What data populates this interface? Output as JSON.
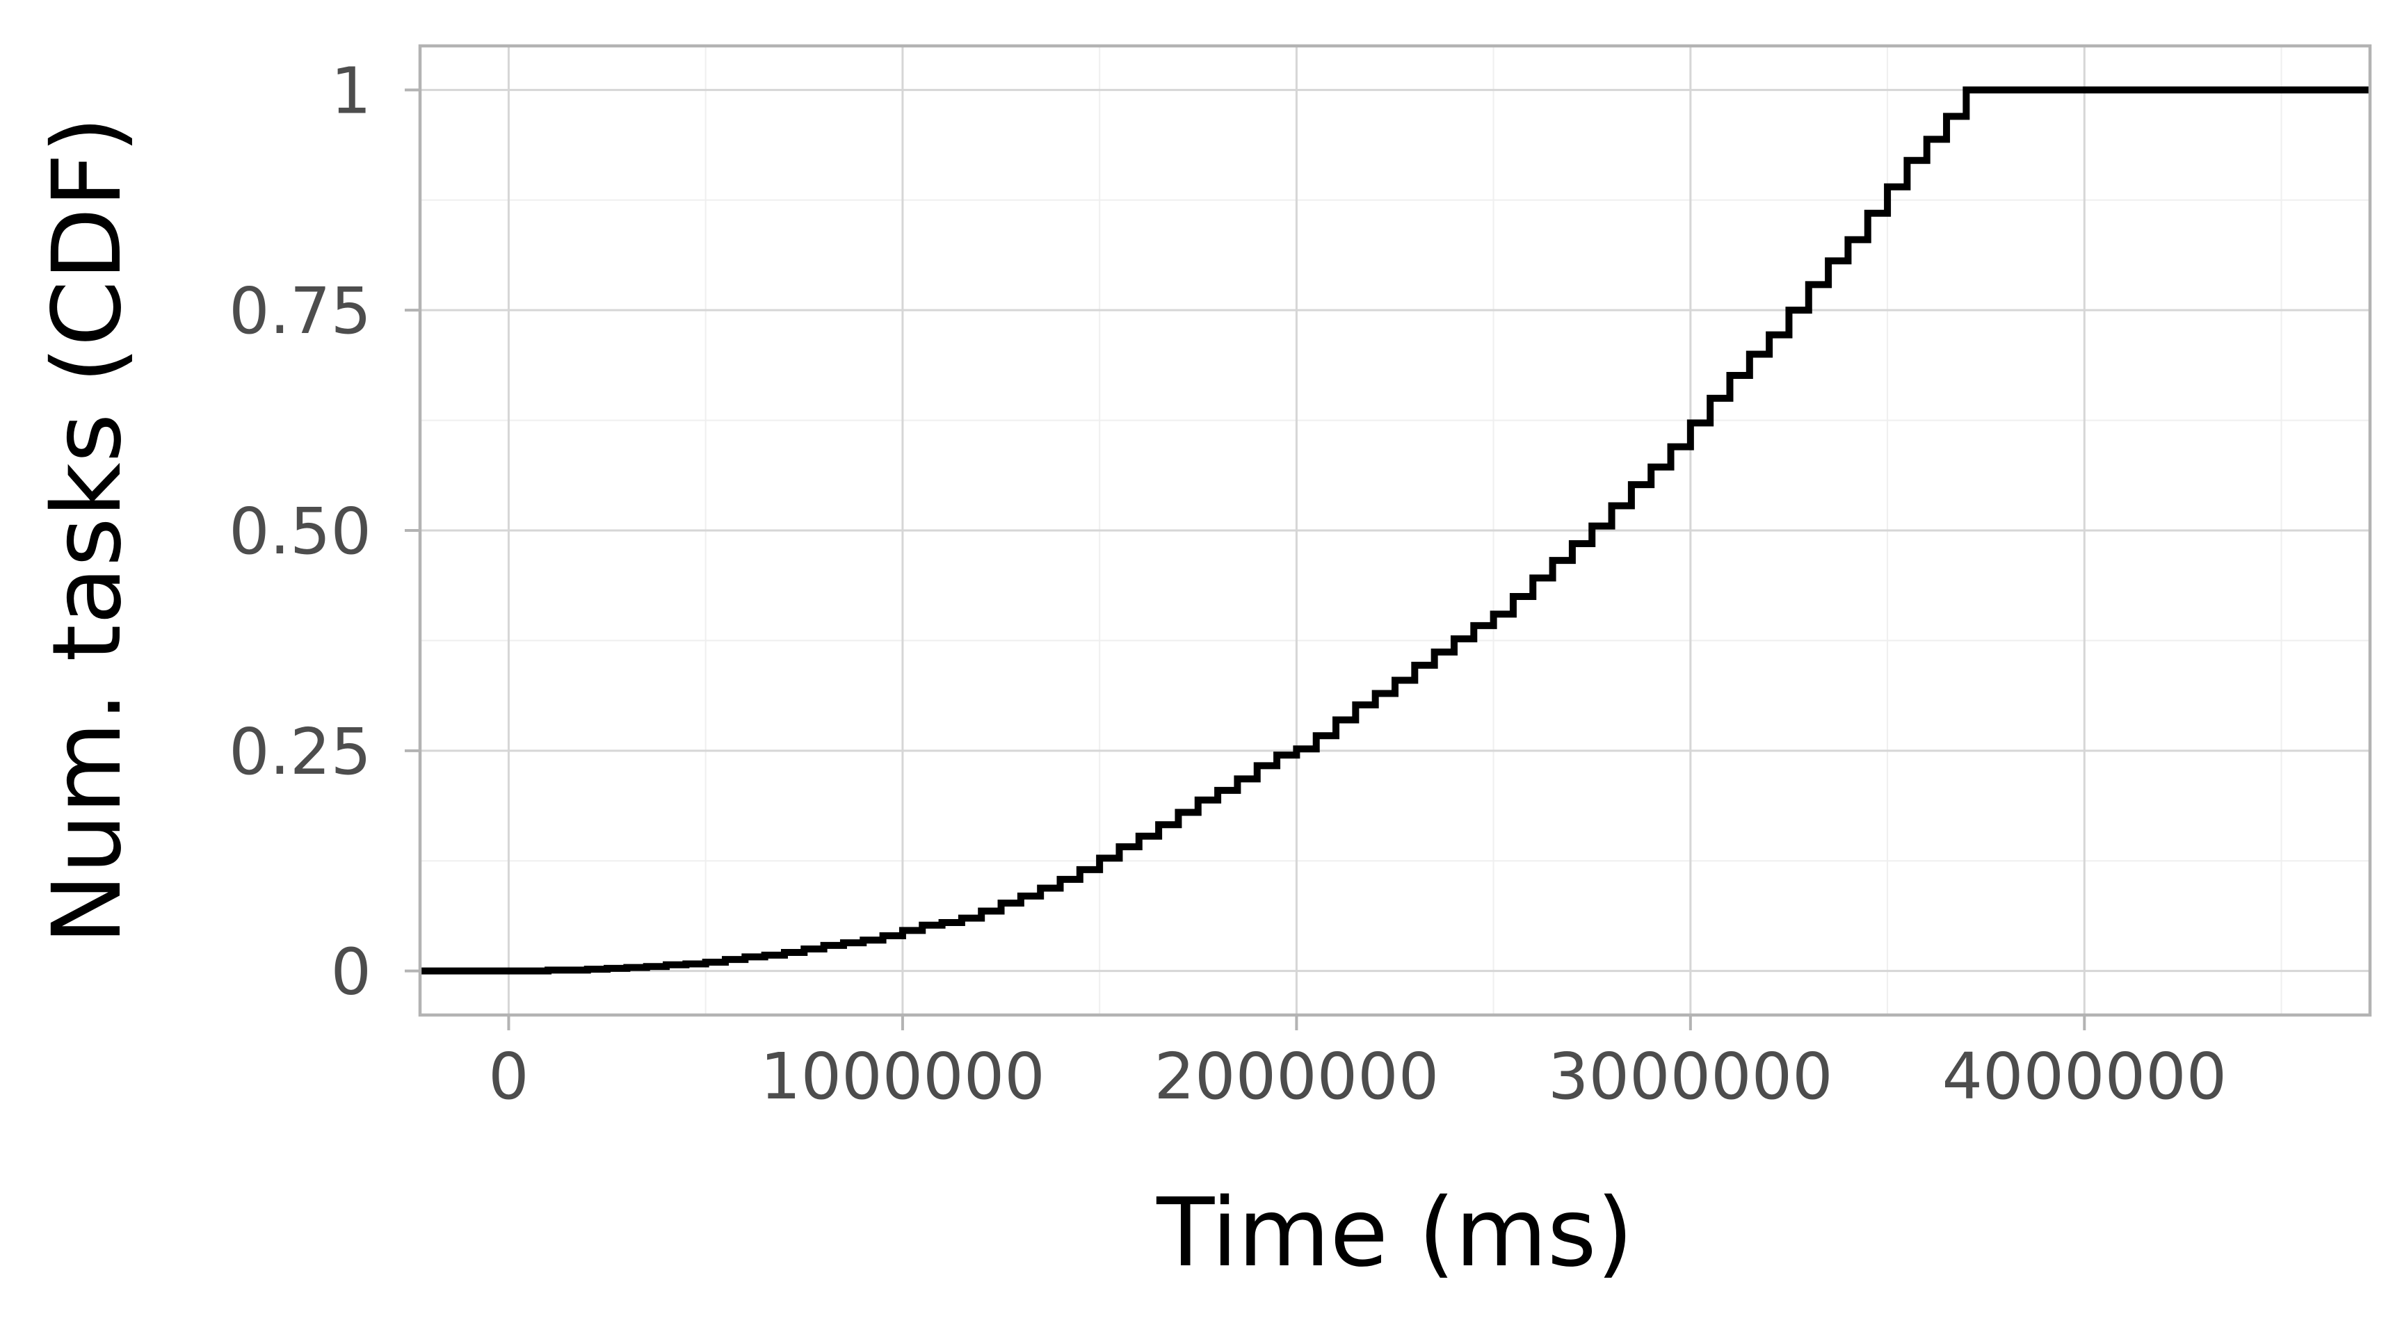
{
  "chart_data": {
    "type": "line",
    "title": "",
    "xlabel": "Time (ms)",
    "ylabel": "Num. tasks (CDF)",
    "xlim": [
      -225000,
      4725000
    ],
    "ylim": [
      -0.05,
      1.05
    ],
    "x_ticks": [
      0,
      1000000,
      2000000,
      3000000,
      4000000
    ],
    "x_tick_labels": [
      "0",
      "1000000",
      "2000000",
      "3000000",
      "4000000"
    ],
    "x_minor_ticks": [
      500000,
      1500000,
      2500000,
      3500000,
      4500000
    ],
    "y_ticks": [
      0,
      0.25,
      0.5,
      0.75,
      1
    ],
    "y_tick_labels": [
      "0",
      "0.25",
      "0.50",
      "0.75",
      "1"
    ],
    "y_minor_ticks": [
      0.125,
      0.375,
      0.625,
      0.875
    ],
    "grid": true,
    "legend": "none",
    "series": [
      {
        "step": true,
        "color": "#000000",
        "x": [
          -225000,
          100000,
          200000,
          250000,
          300000,
          350000,
          400000,
          450000,
          500000,
          550000,
          600000,
          650000,
          700000,
          750000,
          800000,
          850000,
          900000,
          950000,
          1000000,
          1050000,
          1100000,
          1150000,
          1200000,
          1250000,
          1300000,
          1350000,
          1400000,
          1450000,
          1500000,
          1550000,
          1600000,
          1650000,
          1700000,
          1750000,
          1800000,
          1850000,
          1900000,
          1950000,
          2000000,
          2050000,
          2100000,
          2150000,
          2200000,
          2250000,
          2300000,
          2350000,
          2400000,
          2450000,
          2500000,
          2550000,
          2600000,
          2650000,
          2700000,
          2750000,
          2800000,
          2850000,
          2900000,
          2950000,
          3000000,
          3050000,
          3100000,
          3150000,
          3200000,
          3250000,
          3300000,
          3350000,
          3400000,
          3450000,
          3500000,
          3550000,
          3600000,
          3650000,
          3700000,
          4000000,
          4400000,
          4725000
        ],
        "y": [
          0,
          0.001,
          0.002,
          0.003,
          0.004,
          0.005,
          0.007,
          0.008,
          0.01,
          0.013,
          0.016,
          0.018,
          0.021,
          0.025,
          0.029,
          0.032,
          0.035,
          0.04,
          0.046,
          0.052,
          0.055,
          0.06,
          0.068,
          0.077,
          0.085,
          0.094,
          0.104,
          0.115,
          0.128,
          0.141,
          0.153,
          0.166,
          0.18,
          0.194,
          0.205,
          0.218,
          0.233,
          0.245,
          0.252,
          0.267,
          0.285,
          0.302,
          0.315,
          0.33,
          0.347,
          0.362,
          0.377,
          0.392,
          0.405,
          0.425,
          0.446,
          0.466,
          0.485,
          0.505,
          0.528,
          0.552,
          0.572,
          0.595,
          0.622,
          0.65,
          0.676,
          0.7,
          0.722,
          0.75,
          0.779,
          0.806,
          0.83,
          0.86,
          0.89,
          0.92,
          0.944,
          0.97,
          1,
          1,
          1,
          1
        ]
      }
    ]
  }
}
